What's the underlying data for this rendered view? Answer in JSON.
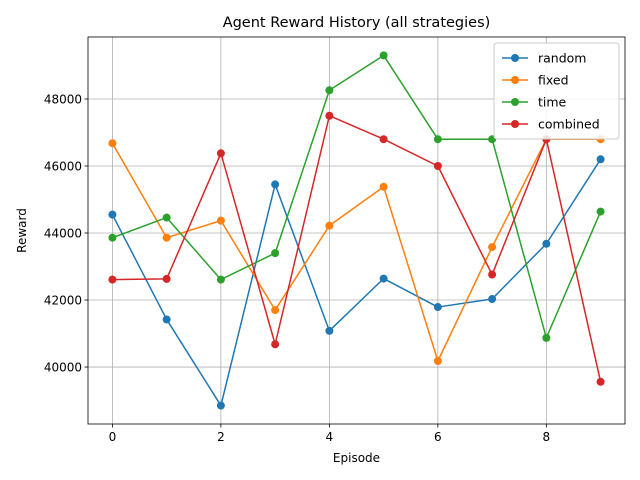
{
  "chart_data": {
    "type": "line",
    "title": "Agent Reward History (all strategies)",
    "xlabel": "Episode",
    "ylabel": "Reward",
    "x": [
      0,
      1,
      2,
      3,
      4,
      5,
      6,
      7,
      8,
      9
    ],
    "xlim": [
      -0.45,
      9.45
    ],
    "ylim": [
      38300,
      49850
    ],
    "xticks": [
      0,
      2,
      4,
      6,
      8
    ],
    "yticks": [
      40000,
      42000,
      44000,
      46000,
      48000
    ],
    "grid": true,
    "legend_position": "top-right",
    "series": [
      {
        "name": "random",
        "color": "#1f77b4",
        "values": [
          44550,
          41420,
          38850,
          45450,
          41080,
          42640,
          41790,
          42030,
          43680,
          46200
        ]
      },
      {
        "name": "fixed",
        "color": "#ff7f0e",
        "values": [
          46680,
          43860,
          44370,
          41700,
          44220,
          45380,
          40180,
          43580,
          46800,
          46800
        ]
      },
      {
        "name": "time",
        "color": "#2ca02c",
        "values": [
          43860,
          44460,
          42610,
          43400,
          48260,
          49300,
          46800,
          46800,
          40870,
          44640
        ]
      },
      {
        "name": "combined",
        "color": "#d62728",
        "values": [
          42610,
          42630,
          46380,
          40680,
          47500,
          46800,
          46000,
          42760,
          46800,
          39560
        ]
      }
    ]
  }
}
